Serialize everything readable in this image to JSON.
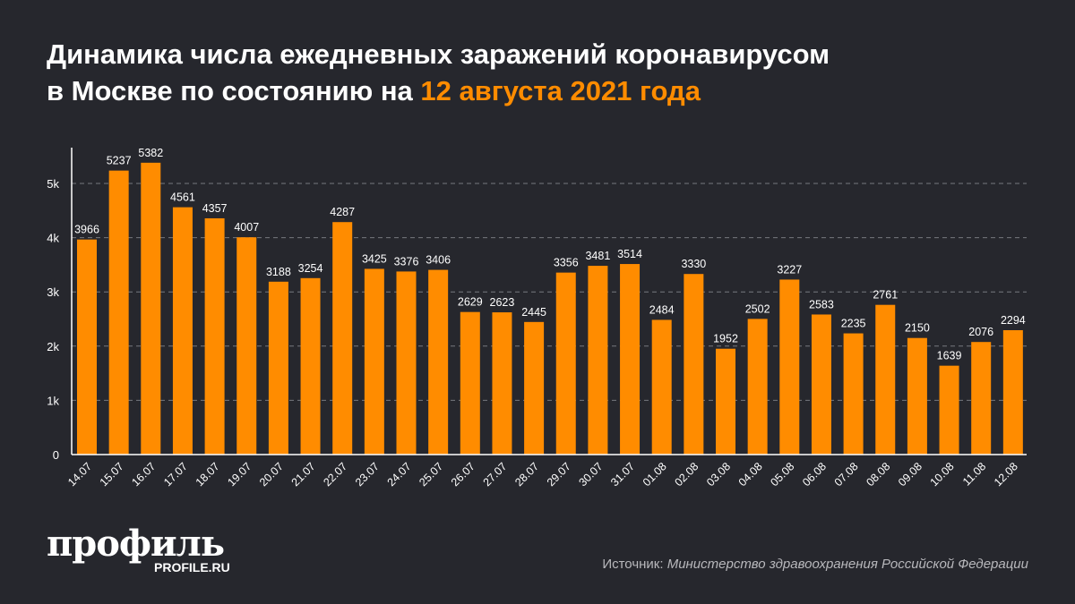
{
  "title": {
    "line1": "Динамика числа ежедневных заражений коронавирусом",
    "line2_prefix": "в Москве по состоянию на ",
    "line2_highlight": "12 августа 2021 года"
  },
  "colors": {
    "bar": "#ff8c00",
    "background": "#26272d",
    "accent": "#ff8c00",
    "text": "#ffffff"
  },
  "chart_data": {
    "type": "bar",
    "title": "Динамика числа ежедневных заражений коронавирусом в Москве по состоянию на 12 августа 2021 года",
    "categories": [
      "14.07",
      "15.07",
      "16.07",
      "17.07",
      "18.07",
      "19.07",
      "20.07",
      "21.07",
      "22.07",
      "23.07",
      "24.07",
      "25.07",
      "26.07",
      "27.07",
      "28.07",
      "29.07",
      "30.07",
      "31.07",
      "01.08",
      "02.08",
      "03.08",
      "04.08",
      "05.08",
      "06.08",
      "07.08",
      "08.08",
      "09.08",
      "10.08",
      "11.08",
      "12.08"
    ],
    "values": [
      3966,
      5237,
      5382,
      4561,
      4357,
      4007,
      3188,
      3254,
      4287,
      3425,
      3376,
      3406,
      2629,
      2623,
      2445,
      3356,
      3481,
      3514,
      2484,
      3330,
      1952,
      2502,
      3227,
      2583,
      2235,
      2761,
      2150,
      1639,
      2076,
      2294
    ],
    "yticks": [
      {
        "value": 0,
        "label": "0"
      },
      {
        "value": 1000,
        "label": "1k"
      },
      {
        "value": 2000,
        "label": "2k"
      },
      {
        "value": 3000,
        "label": "3k"
      },
      {
        "value": 4000,
        "label": "4k"
      },
      {
        "value": 5000,
        "label": "5k"
      }
    ],
    "ylim": [
      0,
      5700
    ],
    "grid": true,
    "data_labels": true,
    "xlabel": "",
    "ylabel": ""
  },
  "logo": {
    "main": "профиль",
    "sub": "PROFILE.RU"
  },
  "source": {
    "label": "Источник: ",
    "value": "Министерство здравоохранения Российской Федерации"
  }
}
